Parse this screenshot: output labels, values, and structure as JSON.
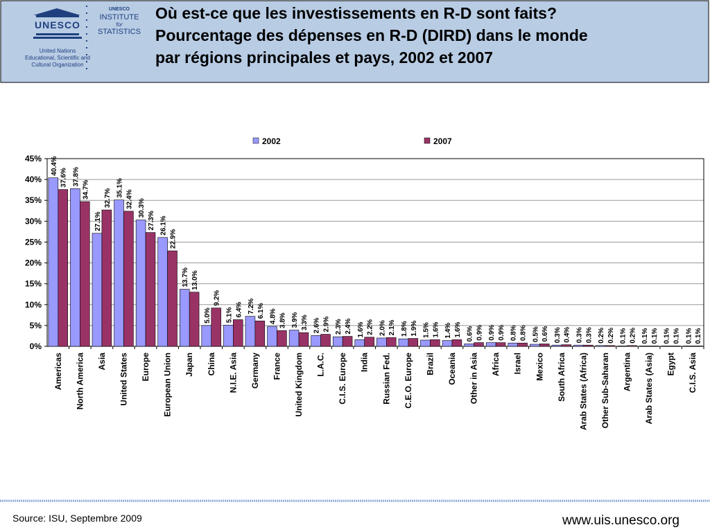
{
  "header": {
    "logo": {
      "org": "UNESCO",
      "institute": [
        "UNESCO",
        "INSTITUTE",
        "for",
        "STATISTICS"
      ],
      "org_name": [
        "United Nations",
        "Educational, Scientific and",
        "Cultural Organization"
      ]
    },
    "title": [
      "Où est-ce que les investissements en R-D  sont faits?",
      "Pourcentage des dépenses en R-D (DIRD) dans le monde",
      "par régions principales et pays, 2002 et 2007"
    ]
  },
  "footer": {
    "source": "Source: ISU, Septembre 2009",
    "url": "www.uis.unesco.org"
  },
  "chart_data": {
    "type": "bar",
    "categories": [
      "Americas",
      "North America",
      "Asia",
      "United States",
      "Europe",
      "European Union",
      "Japan",
      "China",
      "N.I.E. Asia",
      "Germany",
      "France",
      "United Kingdom",
      "L.A.C.",
      "C.I.S. Europe",
      "India",
      "Russian Fed.",
      "C.E.O. Europe",
      "Brazil",
      "Oceania",
      "Other in Asia",
      "Africa",
      "Israel",
      "Mexico",
      "South Africa",
      "Arab States (Africa)",
      "Other Sub-Saharan",
      "Argentina",
      "Arab States (Asia)",
      "Egypt",
      "C.I.S. Asia"
    ],
    "series": [
      {
        "name": "2002",
        "color": "#9999ff",
        "values": [
          40.4,
          37.8,
          27.1,
          35.1,
          30.3,
          26.1,
          13.7,
          5.0,
          5.1,
          7.2,
          4.8,
          3.9,
          2.6,
          2.3,
          1.6,
          2.0,
          1.8,
          1.5,
          1.4,
          0.6,
          0.9,
          0.8,
          0.5,
          0.3,
          0.3,
          0.2,
          0.1,
          0.1,
          0.1,
          0.1
        ],
        "value_labels": [
          "40.4%",
          "37.8%",
          "27.1%",
          "35.1%",
          "30.3%",
          "26.1%",
          "13.7%",
          "5.0%",
          "5.1%",
          "7.2%",
          "4.8%",
          "3.9%",
          "2.6%",
          "2.3%",
          "1.6%",
          "2.0%",
          "1.8%",
          "1.5%",
          "1.4%",
          "0.6%",
          "0.9%",
          "0.8%",
          "0.5%",
          "0.3%",
          "0.3%",
          "0.2%",
          "0.1%",
          "0.1%",
          "0.1%",
          "0.1%"
        ]
      },
      {
        "name": "2007",
        "color": "#993366",
        "values": [
          37.6,
          34.7,
          32.7,
          32.4,
          27.3,
          22.9,
          13.0,
          9.2,
          6.4,
          6.1,
          3.8,
          3.3,
          2.9,
          2.4,
          2.2,
          2.1,
          1.9,
          1.6,
          1.6,
          0.9,
          0.9,
          0.8,
          0.6,
          0.4,
          0.3,
          0.2,
          0.2,
          0.1,
          0.1,
          0.1
        ],
        "value_labels": [
          "37.6%",
          "34.7%",
          "32.7%",
          "32.4%",
          "27.3%",
          "22.9%",
          "13.0%",
          "9.2%",
          "6.4%",
          "6.1%",
          "3.8%",
          "3.3%",
          "2.9%",
          "2.4%",
          "2.2%",
          "2.1%",
          "1.9%",
          "1.6%",
          "1.6%",
          "0.9%",
          "0.9%",
          "0.8%",
          "0.6%",
          "0.4%",
          "0.3%",
          "0.2%",
          "0.2%",
          "0.1%",
          "0.1%",
          "0.1%"
        ]
      }
    ],
    "ylim": [
      0,
      45
    ],
    "yticks": [
      {
        "value": 0,
        "label": "0%"
      },
      {
        "value": 5,
        "label": "5%"
      },
      {
        "value": 10,
        "label": "10%"
      },
      {
        "value": 15,
        "label": "15%"
      },
      {
        "value": 20,
        "label": "20%"
      },
      {
        "value": 25,
        "label": "25%"
      },
      {
        "value": 30,
        "label": "30%"
      },
      {
        "value": 35,
        "label": "35%"
      },
      {
        "value": 40,
        "label": "40%"
      },
      {
        "value": 45,
        "label": "45%"
      }
    ],
    "grid": true,
    "legend": "top"
  }
}
